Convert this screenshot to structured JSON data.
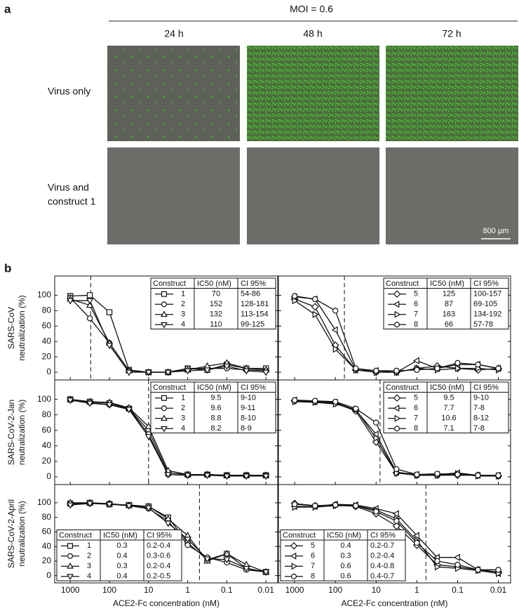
{
  "panel_a": {
    "label": "a",
    "condition": "MOI = 0.6",
    "timepoints": [
      "24 h",
      "48 h",
      "72 h"
    ],
    "rows": [
      [
        "Virus only"
      ],
      [
        "Virus and",
        "construct 1"
      ]
    ],
    "scale_bar": "800 µm"
  },
  "panel_b": {
    "label": "b",
    "legend_headers": [
      "Construct",
      "IC50 (nM)",
      "CI 95%"
    ]
  },
  "chart_data": [
    {
      "type": "line",
      "ylabel": [
        "SARS-CoV",
        "neutralization (%)"
      ],
      "log_x": true,
      "legend": "upper right",
      "reference_line": 300,
      "x": [
        1000,
        316,
        100,
        31.6,
        10,
        3.16,
        1,
        0.316,
        0.1,
        0.0316,
        0.01
      ],
      "xlim": [
        2500,
        0.005
      ],
      "xticks": [
        1000,
        100,
        10,
        1,
        0.1,
        0.01
      ],
      "ylim": [
        -10,
        125
      ],
      "yticks": [
        0,
        20,
        40,
        60,
        80,
        100
      ],
      "series": [
        {
          "name": "1",
          "marker": "square",
          "color": "#111111",
          "ic50": 70,
          "ci": "54-86",
          "values": [
            99,
            100,
            78,
            3,
            0,
            0,
            5,
            3,
            10,
            5,
            5
          ]
        },
        {
          "name": "2",
          "marker": "circle",
          "color": "#111111",
          "ic50": 152,
          "ci": "128-181",
          "values": [
            97,
            70,
            38,
            2,
            0,
            0,
            5,
            5,
            5,
            3,
            2
          ]
        },
        {
          "name": "3",
          "marker": "triangle-up",
          "color": "#111111",
          "ic50": 132,
          "ci": "113-154",
          "values": [
            95,
            87,
            38,
            2,
            0,
            0,
            3,
            8,
            12,
            5,
            3
          ]
        },
        {
          "name": "4",
          "marker": "triangle-down",
          "color": "#111111",
          "ic50": 110,
          "ci": "99-125",
          "values": [
            93,
            93,
            35,
            0,
            0,
            0,
            2,
            3,
            8,
            2,
            0
          ]
        }
      ]
    },
    {
      "type": "line",
      "log_x": true,
      "legend": "upper right",
      "reference_line": 60,
      "x": [
        1000,
        316,
        100,
        31.6,
        10,
        3.16,
        1,
        0.316,
        0.1,
        0.0316,
        0.01
      ],
      "xlim": [
        2500,
        0.005
      ],
      "xticks": [
        1000,
        100,
        10,
        1,
        0.1,
        0.01
      ],
      "ylim": [
        -10,
        125
      ],
      "yticks": [
        0,
        20,
        40,
        60,
        80,
        100
      ],
      "series": [
        {
          "name": "5",
          "marker": "diamond",
          "color": "#111111",
          "ic50": 125,
          "ci": "100-157",
          "values": [
            95,
            85,
            35,
            3,
            0,
            0,
            5,
            8,
            5,
            3,
            5
          ]
        },
        {
          "name": "6",
          "marker": "triangle-left",
          "color": "#111111",
          "ic50": 87,
          "ci": "69-105",
          "values": [
            98,
            95,
            55,
            3,
            2,
            0,
            15,
            5,
            10,
            10,
            5
          ]
        },
        {
          "name": "7",
          "marker": "triangle-right",
          "color": "#111111",
          "ic50": 163,
          "ci": "134-192",
          "values": [
            93,
            75,
            30,
            3,
            0,
            0,
            5,
            3,
            5,
            5,
            3
          ]
        },
        {
          "name": "8",
          "marker": "circle",
          "color": "#111111",
          "ic50": 66,
          "ci": "57-78",
          "values": [
            99,
            95,
            80,
            5,
            2,
            2,
            3,
            5,
            12,
            10,
            5
          ]
        }
      ]
    },
    {
      "type": "line",
      "ylabel": [
        "SARS-CoV-2-Jan",
        "neutralization (%)"
      ],
      "log_x": true,
      "legend": "upper right",
      "reference_line": 10,
      "x": [
        1000,
        316,
        100,
        31.6,
        10,
        3.16,
        1,
        0.316,
        0.1,
        0.0316,
        0.01
      ],
      "xlim": [
        2500,
        0.005
      ],
      "xticks": [
        1000,
        100,
        10,
        1,
        0.1,
        0.01
      ],
      "ylim": [
        -10,
        125
      ],
      "yticks": [
        0,
        20,
        40,
        60,
        80,
        100
      ],
      "series": [
        {
          "name": "1",
          "marker": "square",
          "color": "#111111",
          "ic50": 9.5,
          "ci": "9-10",
          "values": [
            100,
            97,
            95,
            88,
            60,
            5,
            3,
            3,
            2,
            2,
            2
          ]
        },
        {
          "name": "2",
          "marker": "circle",
          "color": "#111111",
          "ic50": 9.6,
          "ci": "9-11",
          "values": [
            99,
            96,
            93,
            88,
            55,
            3,
            2,
            3,
            2,
            2,
            2
          ]
        },
        {
          "name": "3",
          "marker": "triangle-up",
          "color": "#111111",
          "ic50": 8.8,
          "ci": "8-10",
          "values": [
            100,
            97,
            96,
            89,
            65,
            8,
            3,
            3,
            2,
            2,
            2
          ]
        },
        {
          "name": "4",
          "marker": "triangle-down",
          "color": "#111111",
          "ic50": 8.2,
          "ci": "8-9",
          "values": [
            99,
            95,
            93,
            87,
            52,
            3,
            2,
            2,
            1,
            1,
            1
          ]
        }
      ]
    },
    {
      "type": "line",
      "log_x": true,
      "legend": "upper right",
      "reference_line": 8,
      "x": [
        1000,
        316,
        100,
        31.6,
        10,
        3.16,
        1,
        0.316,
        0.1,
        0.0316,
        0.01
      ],
      "xlim": [
        2500,
        0.005
      ],
      "xticks": [
        1000,
        100,
        10,
        1,
        0.1,
        0.01
      ],
      "ylim": [
        -10,
        125
      ],
      "yticks": [
        0,
        20,
        40,
        60,
        80,
        100
      ],
      "series": [
        {
          "name": "5",
          "marker": "diamond",
          "color": "#111111",
          "ic50": 9.5,
          "ci": "9-10",
          "values": [
            98,
            97,
            95,
            85,
            45,
            5,
            2,
            2,
            2,
            2,
            1
          ]
        },
        {
          "name": "6",
          "marker": "triangle-left",
          "color": "#111111",
          "ic50": 7.7,
          "ci": "7-8",
          "values": [
            99,
            97,
            96,
            86,
            55,
            6,
            3,
            3,
            5,
            2,
            2
          ]
        },
        {
          "name": "7",
          "marker": "triangle-right",
          "color": "#111111",
          "ic50": 10.6,
          "ci": "8-12",
          "values": [
            97,
            96,
            94,
            87,
            50,
            5,
            2,
            2,
            4,
            1,
            1
          ]
        },
        {
          "name": "8",
          "marker": "circle",
          "color": "#111111",
          "ic50": 7.1,
          "ci": "7-8",
          "values": [
            99,
            98,
            97,
            88,
            70,
            10,
            3,
            4,
            3,
            2,
            2
          ]
        }
      ]
    },
    {
      "type": "line",
      "ylabel": [
        "SARS-CoV-2-April",
        "neutralization (%)"
      ],
      "xlabel": "ACE2-Fc concentration (nM)",
      "log_x": true,
      "legend": "lower left",
      "reference_line": 0.5,
      "x": [
        1000,
        316,
        100,
        31.6,
        10,
        3.16,
        1,
        0.316,
        0.1,
        0.0316,
        0.01
      ],
      "xlim": [
        2500,
        0.005
      ],
      "xticks": [
        1000,
        100,
        10,
        1,
        0.1,
        0.01
      ],
      "ylim": [
        -10,
        125
      ],
      "yticks": [
        0,
        20,
        40,
        60,
        80,
        100
      ],
      "series": [
        {
          "name": "1",
          "marker": "square",
          "color": "#111111",
          "ic50": 0.3,
          "ci": "0.2-0.4",
          "values": [
            99,
            100,
            98,
            97,
            95,
            80,
            45,
            22,
            30,
            10,
            5
          ]
        },
        {
          "name": "2",
          "marker": "circle",
          "color": "#111111",
          "ic50": 0.4,
          "ci": "0.3-0.6",
          "values": [
            98,
            99,
            99,
            96,
            92,
            75,
            42,
            25,
            18,
            8,
            5
          ]
        },
        {
          "name": "3",
          "marker": "triangle-up",
          "color": "#111111",
          "ic50": 0.3,
          "ci": "0.2-0.4",
          "values": [
            100,
            100,
            99,
            96,
            95,
            78,
            55,
            20,
            30,
            15,
            5
          ]
        },
        {
          "name": "4",
          "marker": "triangle-down",
          "color": "#111111",
          "ic50": 0.4,
          "ci": "0.2-0.5",
          "values": [
            97,
            99,
            98,
            96,
            93,
            72,
            50,
            23,
            22,
            10,
            5
          ]
        }
      ]
    },
    {
      "type": "line",
      "xlabel": "ACE2-Fc concentration (nM)",
      "log_x": true,
      "legend": "lower left",
      "reference_line": 0.6,
      "x": [
        1000,
        316,
        100,
        31.6,
        10,
        3.16,
        1,
        0.316,
        0.1,
        0.0316,
        0.01
      ],
      "xlim": [
        2500,
        0.005
      ],
      "xticks": [
        1000,
        100,
        10,
        1,
        0.1,
        0.01
      ],
      "ylim": [
        -10,
        125
      ],
      "yticks": [
        0,
        20,
        40,
        60,
        80,
        100
      ],
      "series": [
        {
          "name": "5",
          "marker": "diamond",
          "color": "#111111",
          "ic50": 0.4,
          "ci": "0.2-0.7",
          "values": [
            99,
            96,
            97,
            95,
            85,
            68,
            42,
            15,
            12,
            8,
            5
          ]
        },
        {
          "name": "6",
          "marker": "triangle-left",
          "color": "#111111",
          "ic50": 0.3,
          "ci": "0.2-0.4",
          "values": [
            95,
            95,
            98,
            97,
            92,
            85,
            55,
            25,
            25,
            8,
            3
          ]
        },
        {
          "name": "7",
          "marker": "triangle-right",
          "color": "#111111",
          "ic50": 0.6,
          "ci": "0.4-0.8",
          "values": [
            94,
            94,
            96,
            96,
            90,
            78,
            48,
            12,
            10,
            7,
            3
          ]
        },
        {
          "name": "8",
          "marker": "circle",
          "color": "#111111",
          "ic50": 0.6,
          "ci": "0.4-0.7",
          "values": [
            98,
            96,
            97,
            96,
            88,
            75,
            45,
            20,
            15,
            8,
            8
          ]
        }
      ]
    }
  ]
}
